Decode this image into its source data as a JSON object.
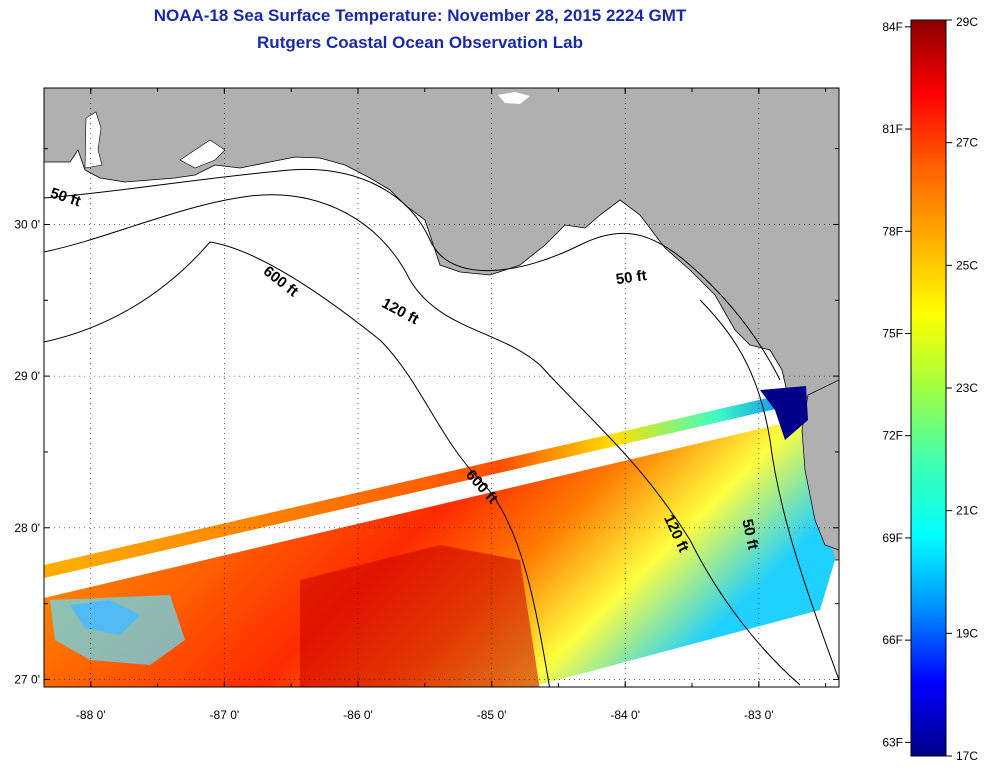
{
  "header": {
    "title": "NOAA-18 Sea Surface Temperature:  November 28, 2015 2224 GMT",
    "subtitle": "Rutgers Coastal Ocean Observation Lab"
  },
  "chart_data": {
    "type": "heatmap",
    "title": "NOAA-18 Sea Surface Temperature:  November 28, 2015 2224 GMT",
    "subtitle": "Rutgers Coastal Ocean Observation Lab",
    "x_ticks": [
      {
        "value": -88,
        "label": "-88 0'"
      },
      {
        "value": -87,
        "label": "-87 0'"
      },
      {
        "value": -86,
        "label": "-86 0'"
      },
      {
        "value": -85,
        "label": "-85 0'"
      },
      {
        "value": -84,
        "label": "-84 0'"
      },
      {
        "value": -83,
        "label": "-83 0'"
      }
    ],
    "y_ticks": [
      {
        "value": 30,
        "label": "30 0'"
      },
      {
        "value": 29,
        "label": "29 0'"
      },
      {
        "value": 28,
        "label": "28 0'"
      },
      {
        "value": 27,
        "label": "27 0'"
      }
    ],
    "xlim": [
      -88.35,
      -82.4
    ],
    "ylim": [
      26.95,
      30.9
    ],
    "contours": [
      {
        "label": "50 ft",
        "lon": -88.2,
        "lat": 30.15
      },
      {
        "label": "600 ft",
        "lon": -86.6,
        "lat": 29.6
      },
      {
        "label": "120 ft",
        "lon": -85.7,
        "lat": 29.4
      },
      {
        "label": "50 ft",
        "lon": -83.95,
        "lat": 29.62
      },
      {
        "label": "600 ft",
        "lon": -85.1,
        "lat": 28.25
      },
      {
        "label": "120 ft",
        "lon": -83.65,
        "lat": 27.95
      },
      {
        "label": "50 ft",
        "lon": -83.1,
        "lat": 27.95
      }
    ],
    "colorbar": {
      "min_c": 17,
      "max_c": 29,
      "celsius_ticks": [
        {
          "value": 29,
          "label": "29C"
        },
        {
          "value": 27,
          "label": "27C"
        },
        {
          "value": 25,
          "label": "25C"
        },
        {
          "value": 23,
          "label": "23C"
        },
        {
          "value": 21,
          "label": "21C"
        },
        {
          "value": 19,
          "label": "19C"
        },
        {
          "value": 17,
          "label": "17C"
        }
      ],
      "fahrenheit_ticks": [
        {
          "value": 84,
          "label": "84F"
        },
        {
          "value": 81,
          "label": "81F"
        },
        {
          "value": 78,
          "label": "78F"
        },
        {
          "value": 75,
          "label": "75F"
        },
        {
          "value": 72,
          "label": "72F"
        },
        {
          "value": 69,
          "label": "69F"
        },
        {
          "value": 66,
          "label": "66F"
        },
        {
          "value": 63,
          "label": "63F"
        }
      ]
    }
  },
  "colors": {
    "title": "#1a2aa6",
    "land": "#b0b0b0",
    "colormap": [
      "#00008b",
      "#0000ff",
      "#0090ff",
      "#00ffff",
      "#40ffb0",
      "#a0ff40",
      "#ffff00",
      "#ffb000",
      "#ff6000",
      "#ff0000",
      "#8b0000"
    ]
  }
}
